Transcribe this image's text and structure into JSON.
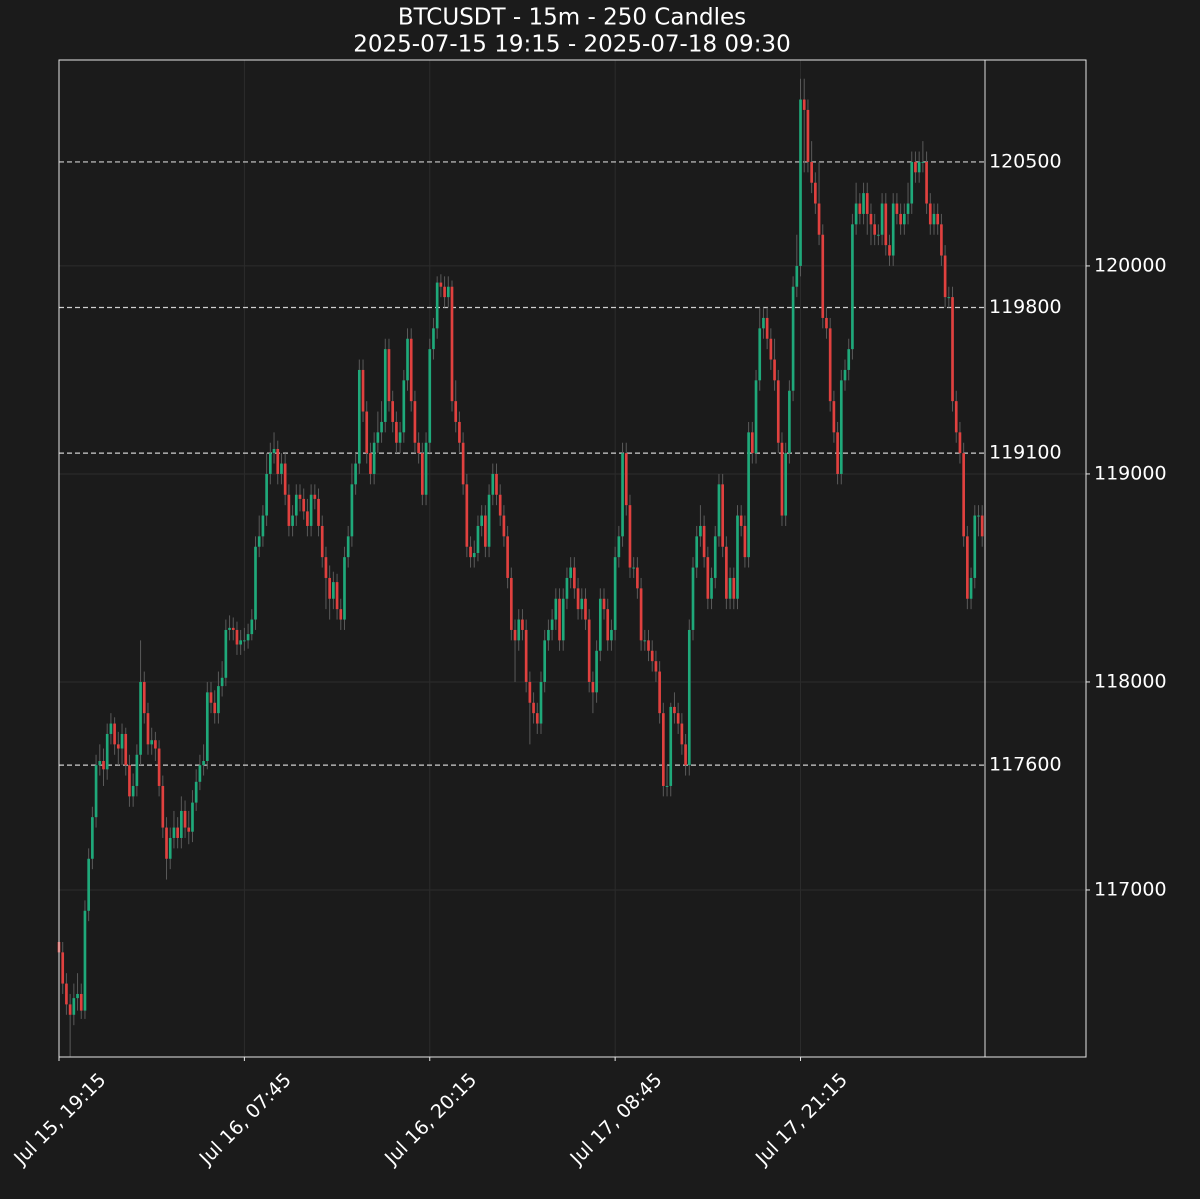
{
  "chart_data": {
    "type": "candlestick",
    "title": "BTCUSDT - 15m - 250 Candles",
    "subtitle": "2025-07-15 19:15 - 2025-07-18 09:30",
    "up_color": "#1fa97a",
    "down_color": "#e0413f",
    "xlim": [
      0,
      277
    ],
    "ylim": [
      116197,
      120990
    ],
    "yticks": [
      117000,
      118000,
      119000,
      120000
    ],
    "xticks": [
      {
        "value": 0,
        "label": "Jul 15, 19:15"
      },
      {
        "value": 50,
        "label": "Jul 16, 07:45"
      },
      {
        "value": 100,
        "label": "Jul 16, 20:15"
      },
      {
        "value": 150,
        "label": "Jul 17, 08:45"
      },
      {
        "value": 200,
        "label": "Jul 17, 21:15"
      }
    ],
    "grid": true,
    "levels": [
      120500,
      119800,
      119100,
      117600
    ],
    "open": [
      116750,
      116700,
      116550,
      116450,
      116400,
      116480,
      116500,
      116420,
      116900,
      117150,
      117350,
      117600,
      117620,
      117580,
      117750,
      117800,
      117700,
      117680,
      117750,
      117600,
      117450,
      117500,
      117650,
      118000,
      117850,
      117700,
      117720,
      117680,
      117500,
      117300,
      117150,
      117250,
      117300,
      117250,
      117380,
      117300,
      117280,
      117420,
      117520,
      117600,
      117620,
      117950,
      117900,
      117850,
      117980,
      118020,
      118250,
      118260,
      118250,
      118180,
      118200,
      118200,
      118230,
      118300,
      118650,
      118700,
      118800,
      119000,
      119100,
      119120,
      119000,
      119050,
      118900,
      118750,
      118800,
      118900,
      118880,
      118820,
      118750,
      118900,
      118880,
      118750,
      118600,
      118500,
      118400,
      118480,
      118350,
      118300,
      118600,
      118700,
      118950,
      119050,
      119500,
      119300,
      119100,
      119000,
      119150,
      119200,
      119250,
      119600,
      119350,
      119250,
      119150,
      119200,
      119450,
      119650,
      119350,
      119150,
      119100,
      118900,
      119150,
      119600,
      119700,
      119920,
      119900,
      119850,
      119900,
      119350,
      119250,
      119150,
      118950,
      118650,
      118600,
      118620,
      118750,
      118800,
      118650,
      118900,
      119000,
      118900,
      118800,
      118700,
      118500,
      118250,
      118200,
      118300,
      118250,
      118000,
      117900,
      117850,
      117800,
      118000,
      118200,
      118250,
      118300,
      118400,
      118200,
      118400,
      118500,
      118550,
      118450,
      118350,
      118400,
      118300,
      118000,
      117950,
      118150,
      118400,
      118350,
      118200,
      118250,
      118600,
      118700,
      119100,
      118850,
      118550,
      118550,
      118450,
      118200,
      118200,
      118150,
      118100,
      118050,
      117850,
      117500,
      117500,
      117880,
      117850,
      117800,
      117700,
      117600,
      118250,
      118550,
      118700,
      118750,
      118600,
      118400,
      118500,
      118700,
      118950,
      118650,
      118400,
      118500,
      118400,
      118800,
      118750,
      118600,
      119200,
      119100,
      119450,
      119700,
      119750,
      119650,
      119550,
      119450,
      119150,
      118800,
      119100,
      119400,
      119900,
      120000,
      120800,
      120750,
      120500,
      120400,
      120300,
      120150,
      119750,
      119700,
      119350,
      119200,
      119000,
      119450,
      119500,
      119600,
      120200,
      120300,
      120250,
      120350,
      120250,
      120200,
      120150,
      120150,
      120300,
      120100,
      120050,
      120300,
      120250,
      120200,
      120250,
      120300,
      120500,
      120450,
      120500,
      120500,
      120300,
      120200,
      120250,
      120200,
      120050,
      119850,
      119850,
      119350,
      119200,
      119100,
      118700,
      118400,
      118500,
      118800,
      118800
    ],
    "high": [
      116800,
      116750,
      116600,
      116500,
      116550,
      116600,
      116550,
      116950,
      117200,
      117400,
      117650,
      117700,
      117680,
      117800,
      117850,
      117830,
      117760,
      117800,
      117780,
      117650,
      117560,
      117700,
      118200,
      118050,
      117900,
      117780,
      117760,
      117720,
      117550,
      117350,
      117300,
      117380,
      117350,
      117450,
      117430,
      117380,
      117480,
      117580,
      117650,
      117700,
      118000,
      118000,
      117960,
      118050,
      118100,
      118300,
      118320,
      118310,
      118290,
      118250,
      118260,
      118280,
      118350,
      118700,
      118800,
      118850,
      119100,
      119150,
      119200,
      119160,
      119100,
      119100,
      118950,
      118850,
      118950,
      118950,
      118930,
      118880,
      118950,
      118950,
      118930,
      118800,
      118650,
      118560,
      118530,
      118520,
      118400,
      118650,
      118750,
      119050,
      119100,
      119550,
      119550,
      119350,
      119150,
      119200,
      119300,
      119350,
      119650,
      119650,
      119400,
      119300,
      119250,
      119500,
      119700,
      119700,
      119400,
      119200,
      119150,
      119200,
      119650,
      119750,
      119950,
      119960,
      119950,
      119950,
      119930,
      119450,
      119300,
      119200,
      119000,
      118700,
      118680,
      118800,
      118850,
      118850,
      118950,
      119050,
      119050,
      118950,
      118850,
      118750,
      118550,
      118300,
      118350,
      118350,
      118300,
      118050,
      117950,
      117900,
      118050,
      118250,
      118300,
      118350,
      118450,
      118450,
      118450,
      118550,
      118600,
      118600,
      118500,
      118450,
      118450,
      118350,
      118050,
      118200,
      118450,
      118450,
      118400,
      118300,
      118650,
      118750,
      119150,
      119150,
      118900,
      118600,
      118600,
      118500,
      118250,
      118250,
      118200,
      118150,
      118100,
      117900,
      117600,
      117900,
      117950,
      117900,
      117850,
      117750,
      118300,
      118600,
      118750,
      118850,
      118800,
      118650,
      118550,
      118750,
      119000,
      119000,
      118700,
      118550,
      118550,
      118850,
      118850,
      118800,
      119250,
      119250,
      119500,
      119800,
      119800,
      119800,
      119700,
      119650,
      119500,
      119200,
      119150,
      119450,
      119950,
      120150,
      120900,
      120900,
      120800,
      120600,
      120450,
      120500,
      120200,
      119800,
      119750,
      119400,
      119250,
      119500,
      119550,
      119650,
      120250,
      120400,
      120350,
      120400,
      120400,
      120300,
      120250,
      120200,
      120350,
      120350,
      120150,
      120350,
      120350,
      120300,
      120300,
      120400,
      120550,
      120550,
      120550,
      120600,
      120550,
      120350,
      120300,
      120300,
      120250,
      120100,
      119900,
      119900,
      119400,
      119250,
      119150,
      118750,
      118550,
      118850,
      118850,
      118850
    ],
    "low": [
      116600,
      116500,
      116400,
      116200,
      116350,
      116420,
      116380,
      116380,
      116850,
      117100,
      117300,
      117550,
      117500,
      117530,
      117700,
      117650,
      117600,
      117600,
      117550,
      117400,
      117400,
      117450,
      117600,
      117800,
      117650,
      117650,
      117620,
      117450,
      117250,
      117050,
      117100,
      117200,
      117200,
      117200,
      117250,
      117220,
      117230,
      117380,
      117480,
      117550,
      117580,
      117850,
      117800,
      117800,
      117930,
      117980,
      118200,
      118200,
      118130,
      118130,
      118150,
      118160,
      118200,
      118250,
      118600,
      118650,
      118750,
      118950,
      119050,
      118950,
      118950,
      118850,
      118700,
      118700,
      118750,
      118820,
      118780,
      118700,
      118700,
      118830,
      118700,
      118550,
      118350,
      118300,
      118350,
      118300,
      118250,
      118250,
      118550,
      118650,
      118900,
      119000,
      119250,
      119050,
      118950,
      118950,
      119100,
      119150,
      119200,
      119300,
      119200,
      119100,
      119100,
      119150,
      119400,
      119300,
      119100,
      119050,
      118850,
      118850,
      119100,
      119550,
      119650,
      119850,
      119800,
      119800,
      119300,
      119200,
      119100,
      118900,
      118600,
      118550,
      118550,
      118580,
      118700,
      118600,
      118600,
      118850,
      118850,
      118750,
      118650,
      118450,
      118200,
      118000,
      118150,
      118200,
      117950,
      117700,
      117800,
      117750,
      117750,
      117950,
      118150,
      118200,
      118250,
      118150,
      118150,
      118350,
      118450,
      118400,
      118300,
      118300,
      118250,
      117950,
      117850,
      117900,
      118100,
      118300,
      118150,
      118150,
      118200,
      118550,
      118650,
      118800,
      118500,
      118500,
      118400,
      118150,
      118150,
      118100,
      118050,
      118000,
      117800,
      117450,
      117450,
      117450,
      117800,
      117750,
      117650,
      117550,
      117550,
      118200,
      118500,
      118650,
      118550,
      118350,
      118350,
      118450,
      118650,
      118600,
      118350,
      118350,
      118350,
      118350,
      118700,
      118550,
      118550,
      119050,
      119050,
      119400,
      119650,
      119600,
      119500,
      119400,
      119100,
      118750,
      118750,
      119050,
      119350,
      119850,
      119950,
      120450,
      120450,
      120350,
      120250,
      120100,
      119700,
      119650,
      119300,
      119150,
      118950,
      118950,
      119400,
      119450,
      119550,
      120150,
      120200,
      120200,
      120150,
      120100,
      120100,
      120100,
      120100,
      120050,
      120000,
      120000,
      120200,
      120150,
      120150,
      120200,
      120250,
      120400,
      120400,
      120450,
      120250,
      120150,
      120150,
      120150,
      120000,
      119800,
      119800,
      119300,
      119150,
      119050,
      118650,
      118350,
      118350,
      118450,
      118700,
      118650
    ],
    "close": [
      116700,
      116550,
      116450,
      116400,
      116480,
      116500,
      116420,
      116900,
      117150,
      117350,
      117600,
      117620,
      117580,
      117750,
      117800,
      117700,
      117680,
      117750,
      117600,
      117450,
      117500,
      117650,
      118000,
      117850,
      117700,
      117720,
      117680,
      117500,
      117300,
      117150,
      117250,
      117300,
      117250,
      117380,
      117300,
      117280,
      117420,
      117520,
      117600,
      117620,
      117950,
      117900,
      117850,
      117980,
      118020,
      118250,
      118260,
      118250,
      118180,
      118200,
      118200,
      118230,
      118300,
      118650,
      118700,
      118800,
      119000,
      119100,
      119120,
      119000,
      119050,
      118900,
      118750,
      118800,
      118900,
      118880,
      118820,
      118750,
      118900,
      118880,
      118750,
      118600,
      118500,
      118400,
      118480,
      118350,
      118300,
      118600,
      118700,
      118950,
      119050,
      119500,
      119300,
      119100,
      119000,
      119150,
      119200,
      119250,
      119600,
      119350,
      119250,
      119150,
      119200,
      119450,
      119650,
      119350,
      119150,
      119100,
      118900,
      119150,
      119600,
      119700,
      119920,
      119900,
      119850,
      119900,
      119350,
      119250,
      119150,
      118950,
      118650,
      118600,
      118620,
      118750,
      118800,
      118650,
      118900,
      119000,
      118900,
      118800,
      118700,
      118500,
      118250,
      118200,
      118300,
      118250,
      118000,
      117900,
      117850,
      117800,
      118000,
      118200,
      118250,
      118300,
      118400,
      118200,
      118400,
      118500,
      118550,
      118450,
      118350,
      118400,
      118300,
      118000,
      117950,
      118150,
      118400,
      118350,
      118200,
      118250,
      118600,
      118700,
      119100,
      118850,
      118550,
      118550,
      118450,
      118200,
      118200,
      118150,
      118100,
      118050,
      117850,
      117500,
      117500,
      117880,
      117850,
      117800,
      117700,
      117600,
      118250,
      118550,
      118700,
      118750,
      118600,
      118400,
      118500,
      118700,
      118950,
      118650,
      118400,
      118500,
      118400,
      118800,
      118750,
      118600,
      119200,
      119100,
      119450,
      119700,
      119750,
      119650,
      119550,
      119450,
      119150,
      118800,
      119100,
      119400,
      119900,
      120000,
      120800,
      120750,
      120500,
      120400,
      120300,
      120150,
      119750,
      119700,
      119350,
      119200,
      119000,
      119450,
      119500,
      119600,
      120200,
      120300,
      120250,
      120350,
      120250,
      120200,
      120150,
      120150,
      120300,
      120100,
      120050,
      120300,
      120250,
      120200,
      120250,
      120300,
      120500,
      120450,
      120500,
      120500,
      120300,
      120200,
      120250,
      120200,
      120050,
      119850,
      119850,
      119350,
      119200,
      119100,
      118700,
      118400,
      118500,
      118800,
      118800,
      118700
    ]
  }
}
